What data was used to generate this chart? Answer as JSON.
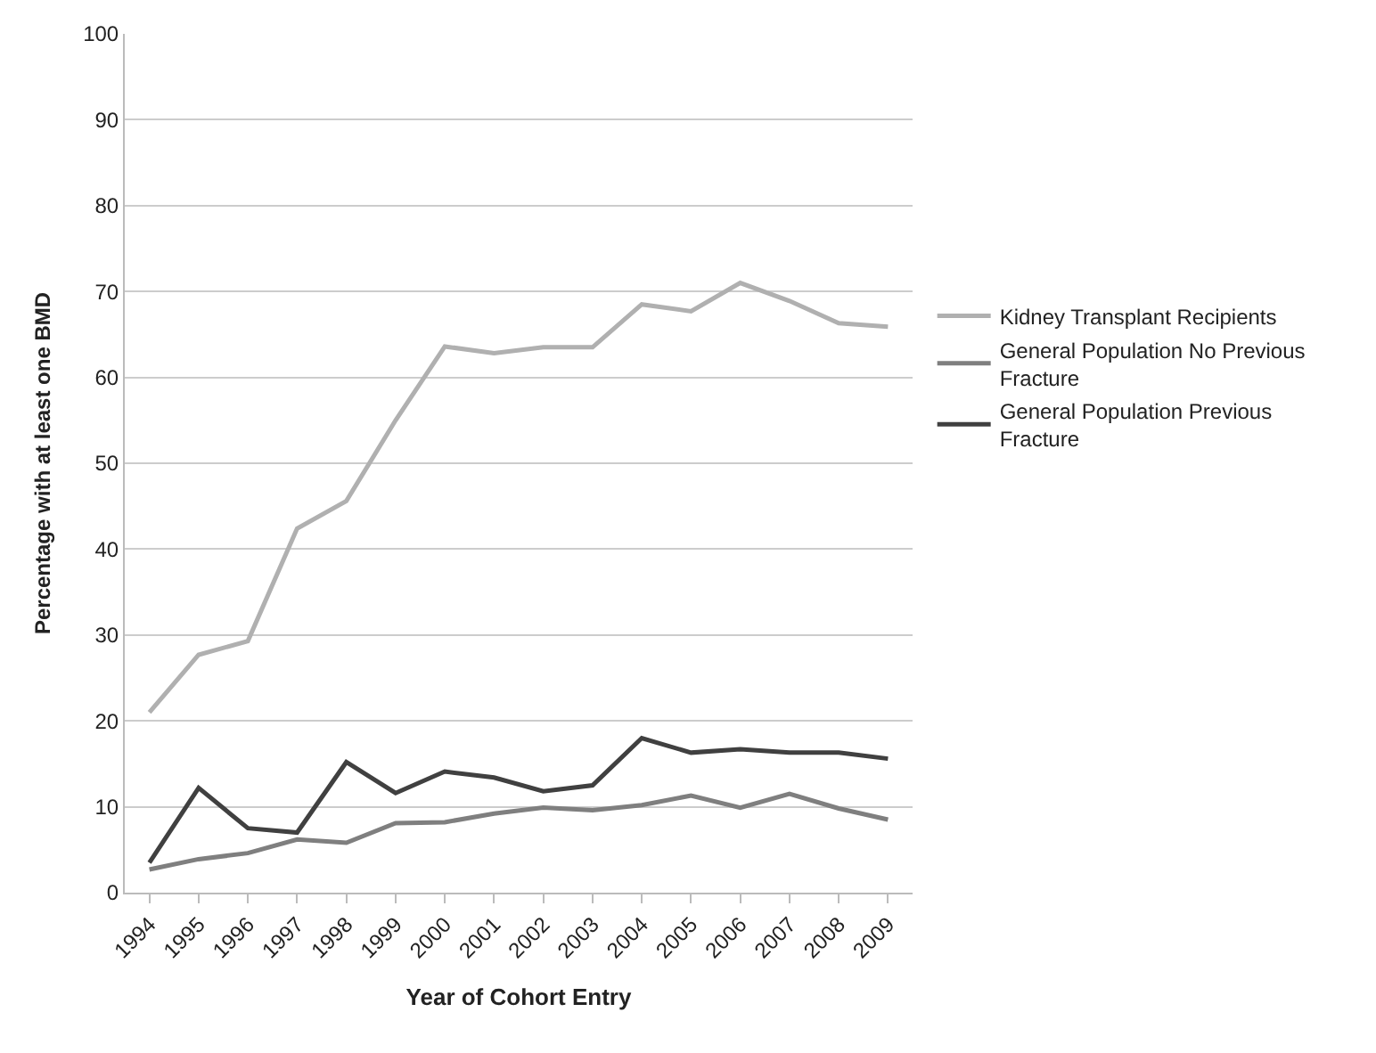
{
  "chart_data": {
    "type": "line",
    "xlabel": "Year of Cohort Entry",
    "ylabel": "Percentage with at least one BMD",
    "categories": [
      "1994",
      "1995",
      "1996",
      "1997",
      "1998",
      "1999",
      "2000",
      "2001",
      "2002",
      "2003",
      "2004",
      "2005",
      "2006",
      "2007",
      "2008",
      "2009"
    ],
    "series": [
      {
        "name": "Kidney Transplant Recipients",
        "color": "#b0b0b0",
        "values": [
          21,
          27.7,
          29.3,
          42.4,
          45.6,
          55,
          63.6,
          62.8,
          63.5,
          63.5,
          68.5,
          67.7,
          71,
          68.9,
          66.3,
          65.9
        ]
      },
      {
        "name": "General Population No Previous Fracture",
        "color": "#7f7f7f",
        "values": [
          2.7,
          3.9,
          4.6,
          6.2,
          5.8,
          8.1,
          8.2,
          9.2,
          9.9,
          9.6,
          10.2,
          11.3,
          9.9,
          11.5,
          9.8,
          8.5
        ]
      },
      {
        "name": "General Population Previous Fracture",
        "color": "#404040",
        "values": [
          3.5,
          12.2,
          7.5,
          7.0,
          15.2,
          11.6,
          14.1,
          13.4,
          11.8,
          12.5,
          18.0,
          16.3,
          16.7,
          16.3,
          16.3,
          15.6
        ]
      }
    ],
    "ylim": [
      0,
      100
    ],
    "yticks": [
      0,
      10,
      20,
      30,
      40,
      50,
      60,
      70,
      80,
      90,
      100
    ],
    "grid": "y",
    "legend": "right",
    "marker": "none",
    "line_style": "solid"
  }
}
